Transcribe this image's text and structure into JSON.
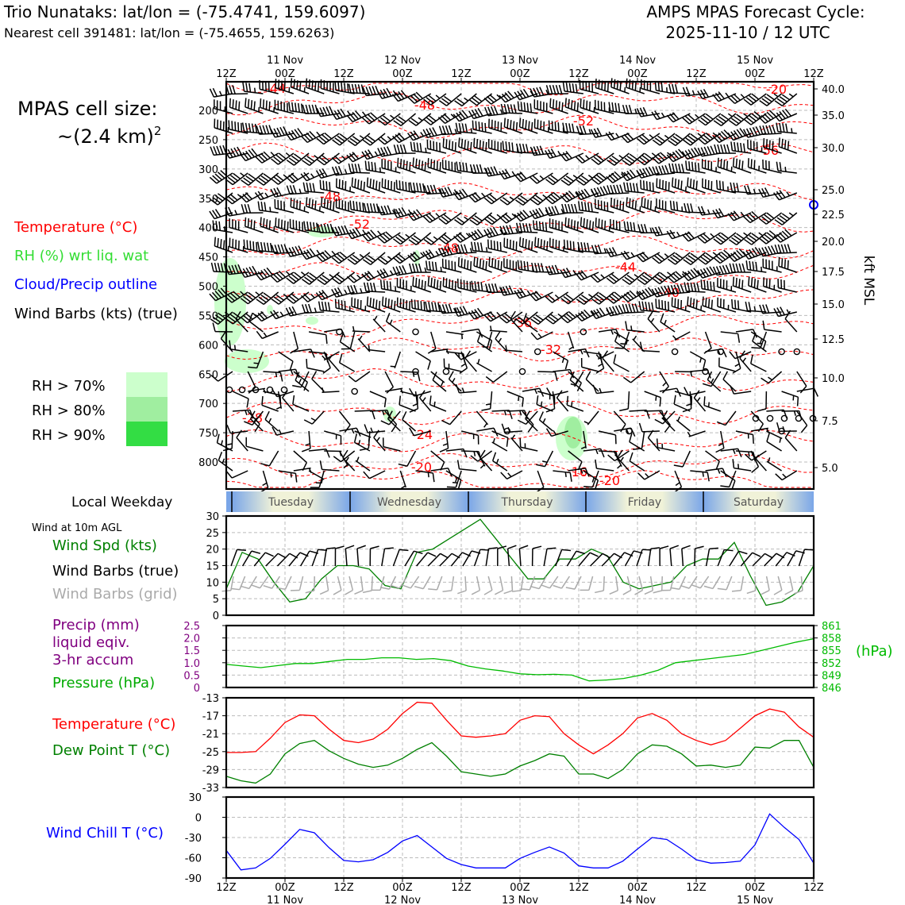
{
  "header": {
    "station_line": "Trio Nunataks: lat/lon = (-75.4741, 159.6097)",
    "cell_line": "Nearest cell 391481: lat/lon = (-75.4655, 159.6263)",
    "cycle_title": "AMPS MPAS Forecast Cycle:",
    "cycle_time": "2025-11-10 / 12 UTC"
  },
  "side": {
    "cell_size_label": "MPAS cell size:",
    "cell_size_value": "~(2.4 km)",
    "cell_size_exp": "2",
    "legend_temp": "Temperature (°C)",
    "legend_rh": "RH (%) wrt liq. wat",
    "legend_cloud": "Cloud/Precip outline",
    "legend_barbs": "Wind Barbs (kts) (true)",
    "rh70": "RH > 70%",
    "rh80": "RH > 80%",
    "rh90": "RH > 90%",
    "weekday_label": "Local Weekday",
    "wind10_label": "Wind at 10m AGL",
    "wspd_label": "Wind Spd (kts)",
    "barbs_true_label": "Wind Barbs (true)",
    "barbs_grid_label": "Wind Barbs (grid)",
    "precip_l1": "Precip (mm)",
    "precip_l2": "liquid eqiv.",
    "precip_l3": "3-hr accum",
    "pressure_label": "Pressure (hPa)",
    "hpa_unit": "(hPa)",
    "temp_label": "Temperature (°C)",
    "dew_label": "Dew Point T (°C)",
    "chill_label": "Wind Chill T (°C)",
    "kft_label": "kft MSL"
  },
  "colors": {
    "temp": "#ff0000",
    "dew": "#008000",
    "pressure": "#00bb00",
    "chill": "#0000ff",
    "precip": "#800080",
    "rh70": "#ccffcc",
    "rh80": "#a0eea0",
    "rh90": "#33dd44",
    "rhtext": "#33dd33",
    "grid_barb": "#aaaaaa"
  },
  "time_axis": {
    "ticks": [
      "12Z",
      "00Z",
      "12Z",
      "00Z",
      "12Z",
      "00Z",
      "12Z",
      "00Z",
      "12Z",
      "00Z",
      "12Z"
    ],
    "dates": [
      "11 Nov",
      "12 Nov",
      "13 Nov",
      "14 Nov",
      "15 Nov"
    ]
  },
  "weekdays": [
    "Tuesday",
    "Wednesday",
    "Thursday",
    "Friday",
    "Saturday"
  ],
  "chart_data": [
    {
      "type": "contour",
      "name": "upper-air cross section",
      "y_left_label": "",
      "y_left_ticks": [
        "200",
        "250",
        "300",
        "350",
        "400",
        "450",
        "500",
        "550",
        "600",
        "650",
        "700",
        "750",
        "800"
      ],
      "y_right_ticks": [
        "40.0",
        "35.0",
        "30.0",
        "25.0",
        "22.5",
        "20.0",
        "17.5",
        "15.0",
        "12.5",
        "10.0",
        "7.5",
        "5.0"
      ],
      "temp_contour_labels": [
        "-44",
        "-48",
        "-52",
        "-56",
        "-48",
        "-52",
        "-48",
        "-44",
        "-40",
        "-36",
        "-32",
        "-28",
        "-24",
        "-20",
        "-16",
        "-20",
        "-20"
      ]
    },
    {
      "type": "line",
      "name": "10m wind speed",
      "ylim": [
        0,
        30
      ],
      "yticks": [
        "0",
        "5",
        "10",
        "15",
        "20",
        "25",
        "30"
      ],
      "values": [
        8,
        19,
        17,
        10,
        4,
        5,
        11,
        15,
        15,
        14,
        9,
        8,
        19,
        20,
        23,
        26,
        29,
        23,
        17,
        11,
        11,
        17,
        17,
        20,
        18,
        10,
        8,
        9,
        10,
        15,
        17,
        17,
        22,
        12,
        3,
        4,
        7,
        15
      ]
    },
    {
      "type": "line",
      "name": "pressure",
      "yticks_left": [
        "0",
        "0.5",
        "1.0",
        "1.5",
        "2.0",
        "2.5"
      ],
      "yticks_right": [
        "846",
        "849",
        "852",
        "855",
        "858",
        "861"
      ],
      "ylim": [
        846,
        861
      ],
      "values": [
        851.6,
        851.2,
        850.8,
        851.3,
        851.8,
        851.8,
        852.3,
        852.8,
        852.8,
        853.2,
        853.2,
        852.8,
        853.0,
        852.5,
        851.2,
        850.5,
        850.0,
        849.3,
        849.1,
        849.2,
        849.0,
        847.6,
        847.8,
        848.2,
        849.0,
        850.2,
        852.0,
        852.5,
        853.0,
        853.5,
        854.0,
        855.0,
        856.0,
        857.0,
        857.8
      ]
    },
    {
      "type": "line",
      "name": "temperature and dew point",
      "ylim": [
        -33,
        -13
      ],
      "yticks": [
        "-13",
        "-17",
        "-21",
        "-25",
        "-29",
        "-33"
      ],
      "series": [
        {
          "name": "Temperature (°C)",
          "values": [
            -25.2,
            -25.2,
            -25,
            -22,
            -18.5,
            -16.8,
            -17,
            -20,
            -22.5,
            -23,
            -22.2,
            -20,
            -16.5,
            -14,
            -14.2,
            -18,
            -21.5,
            -21.8,
            -21.5,
            -21,
            -18,
            -17,
            -17.2,
            -21,
            -23.5,
            -25.5,
            -23.5,
            -21,
            -17.5,
            -16.5,
            -18,
            -21,
            -22.5,
            -23.5,
            -22.5,
            -19.8,
            -17,
            -15.5,
            -16.2,
            -19.5,
            -21.8
          ]
        },
        {
          "name": "Dew Point T (°C)",
          "values": [
            -30.5,
            -31.5,
            -32,
            -30,
            -25.5,
            -23.2,
            -22.5,
            -24.8,
            -26.5,
            -27.8,
            -28.5,
            -28,
            -26.5,
            -24.5,
            -23,
            -26,
            -29.5,
            -30,
            -30.5,
            -30,
            -28.2,
            -27,
            -25.5,
            -26,
            -30,
            -30,
            -31,
            -29,
            -25.5,
            -23.5,
            -23.8,
            -25.5,
            -28.2,
            -28,
            -28.5,
            -28,
            -24,
            -24.2,
            -22.5,
            -22.5,
            -28.5
          ]
        }
      ]
    },
    {
      "type": "line",
      "name": "wind chill",
      "ylim": [
        -90,
        30
      ],
      "yticks": [
        "30",
        "0",
        "-30",
        "-60",
        "-90"
      ],
      "values": [
        -49,
        -78,
        -75,
        -61,
        -40,
        -18,
        -23,
        -45,
        -64,
        -66,
        -63,
        -52,
        -35,
        -27,
        -44,
        -61,
        -70,
        -75,
        -75,
        -75,
        -61,
        -52,
        -44,
        -53,
        -72,
        -75,
        -75,
        -65,
        -47,
        -30,
        -33,
        -47,
        -63,
        -68,
        -67,
        -65,
        -41,
        5,
        -15,
        -33,
        -68
      ]
    }
  ]
}
